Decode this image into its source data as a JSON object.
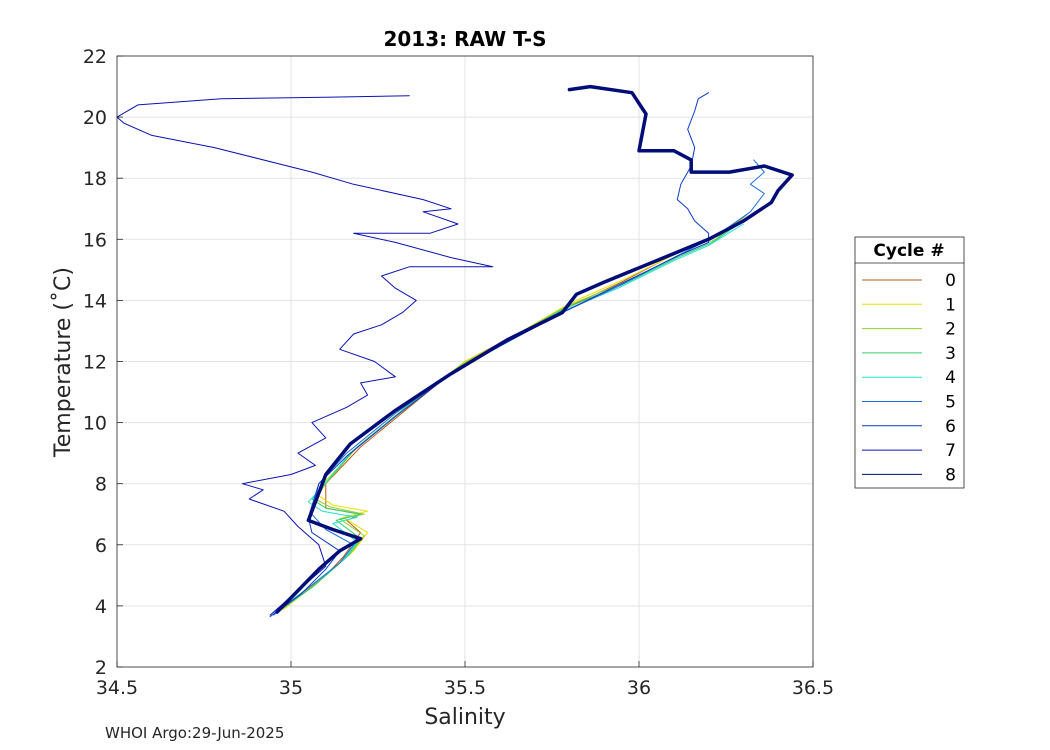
{
  "footer": "WHOI Argo:29-Jun-2025",
  "chart_data": {
    "type": "line",
    "title": "2013: RAW T-S",
    "xlabel": "Salinity",
    "ylabel": "Temperature (˚C)",
    "xlim": [
      34.5,
      36.5
    ],
    "ylim": [
      2,
      22
    ],
    "xticks": [
      "34.5",
      "35",
      "35.5",
      "36",
      "36.5"
    ],
    "yticks": [
      "2",
      "4",
      "6",
      "8",
      "10",
      "12",
      "14",
      "16",
      "18",
      "20",
      "22"
    ],
    "grid": true,
    "legend": {
      "title": "Cycle #",
      "placement": "outside-right"
    },
    "series": [
      {
        "name": "0",
        "color": "#c05a10",
        "width": 1,
        "points": [
          [
            34.99,
            4.0
          ],
          [
            35.1,
            5.0
          ],
          [
            35.15,
            5.6
          ],
          [
            35.2,
            6.4
          ],
          [
            35.16,
            6.8
          ],
          [
            35.2,
            7.0
          ],
          [
            35.1,
            7.2
          ],
          [
            35.1,
            7.6
          ],
          [
            35.1,
            8.0
          ],
          [
            35.2,
            9.2
          ],
          [
            35.35,
            10.6
          ],
          [
            35.5,
            12.0
          ],
          [
            35.6,
            12.6
          ],
          [
            35.8,
            13.8
          ],
          [
            35.95,
            14.6
          ],
          [
            36.1,
            15.5
          ],
          [
            36.2,
            16.0
          ],
          [
            36.3,
            16.6
          ]
        ]
      },
      {
        "name": "1",
        "color": "#e8e000",
        "width": 1,
        "points": [
          [
            34.98,
            3.9
          ],
          [
            35.08,
            4.8
          ],
          [
            35.18,
            5.8
          ],
          [
            35.22,
            6.4
          ],
          [
            35.15,
            6.9
          ],
          [
            35.22,
            7.1
          ],
          [
            35.12,
            7.3
          ],
          [
            35.08,
            7.6
          ],
          [
            35.1,
            8.1
          ],
          [
            35.2,
            9.3
          ],
          [
            35.34,
            10.6
          ],
          [
            35.5,
            12.0
          ],
          [
            35.62,
            12.7
          ],
          [
            35.8,
            13.9
          ],
          [
            35.96,
            14.7
          ],
          [
            36.12,
            15.6
          ],
          [
            36.22,
            16.1
          ],
          [
            36.3,
            16.7
          ]
        ]
      },
      {
        "name": "2",
        "color": "#90d030",
        "width": 1,
        "points": [
          [
            34.97,
            3.85
          ],
          [
            35.07,
            4.7
          ],
          [
            35.17,
            5.7
          ],
          [
            35.21,
            6.3
          ],
          [
            35.14,
            6.85
          ],
          [
            35.21,
            7.0
          ],
          [
            35.11,
            7.25
          ],
          [
            35.07,
            7.5
          ],
          [
            35.1,
            8.0
          ],
          [
            35.19,
            9.2
          ],
          [
            35.33,
            10.5
          ],
          [
            35.49,
            11.9
          ],
          [
            35.62,
            12.7
          ],
          [
            35.79,
            13.8
          ],
          [
            35.96,
            14.6
          ],
          [
            36.12,
            15.5
          ],
          [
            36.22,
            16.0
          ],
          [
            36.31,
            16.8
          ]
        ]
      },
      {
        "name": "3",
        "color": "#30d070",
        "width": 1,
        "points": [
          [
            34.96,
            3.8
          ],
          [
            35.06,
            4.6
          ],
          [
            35.16,
            5.6
          ],
          [
            35.2,
            6.2
          ],
          [
            35.13,
            6.8
          ],
          [
            35.2,
            7.0
          ],
          [
            35.1,
            7.2
          ],
          [
            35.06,
            7.5
          ],
          [
            35.09,
            7.9
          ],
          [
            35.18,
            9.1
          ],
          [
            35.32,
            10.4
          ],
          [
            35.48,
            11.8
          ],
          [
            35.61,
            12.6
          ],
          [
            35.78,
            13.7
          ],
          [
            35.95,
            14.5
          ],
          [
            36.11,
            15.4
          ],
          [
            36.21,
            15.9
          ],
          [
            36.3,
            16.6
          ]
        ]
      },
      {
        "name": "4",
        "color": "#20e0d0",
        "width": 1,
        "points": [
          [
            34.95,
            3.75
          ],
          [
            35.05,
            4.6
          ],
          [
            35.15,
            5.5
          ],
          [
            35.19,
            6.1
          ],
          [
            35.12,
            6.7
          ],
          [
            35.19,
            6.9
          ],
          [
            35.09,
            7.1
          ],
          [
            35.05,
            7.4
          ],
          [
            35.09,
            7.9
          ],
          [
            35.17,
            9.0
          ],
          [
            35.31,
            10.3
          ],
          [
            35.47,
            11.7
          ],
          [
            35.6,
            12.5
          ],
          [
            35.77,
            13.6
          ],
          [
            35.94,
            14.4
          ],
          [
            36.1,
            15.3
          ],
          [
            36.2,
            15.8
          ],
          [
            36.3,
            16.5
          ]
        ]
      },
      {
        "name": "5",
        "color": "#1e6ee0",
        "width": 1,
        "points": [
          [
            34.95,
            3.7
          ],
          [
            35.04,
            4.5
          ],
          [
            35.14,
            5.4
          ],
          [
            35.18,
            6.0
          ],
          [
            35.1,
            6.5
          ],
          [
            35.06,
            7.0
          ],
          [
            35.08,
            8.0
          ],
          [
            35.16,
            9.0
          ],
          [
            35.3,
            10.3
          ],
          [
            35.46,
            11.6
          ],
          [
            35.6,
            12.5
          ],
          [
            35.78,
            13.6
          ],
          [
            35.93,
            14.4
          ],
          [
            36.1,
            15.4
          ],
          [
            36.22,
            16.1
          ],
          [
            36.32,
            16.9
          ],
          [
            36.36,
            17.5
          ],
          [
            36.32,
            17.8
          ],
          [
            36.36,
            18.2
          ],
          [
            36.33,
            18.6
          ]
        ]
      },
      {
        "name": "6",
        "color": "#0a3cc8",
        "width": 1,
        "points": [
          [
            34.94,
            3.65
          ],
          [
            35.03,
            4.4
          ],
          [
            35.1,
            5.2
          ],
          [
            35.14,
            5.8
          ],
          [
            35.06,
            6.4
          ],
          [
            35.05,
            6.9
          ],
          [
            35.08,
            8.0
          ],
          [
            35.16,
            8.9
          ],
          [
            35.3,
            10.2
          ],
          [
            35.46,
            11.6
          ],
          [
            35.6,
            12.5
          ],
          [
            35.78,
            13.6
          ],
          [
            35.94,
            14.5
          ],
          [
            36.12,
            15.5
          ],
          [
            36.2,
            15.9
          ],
          [
            36.2,
            16.2
          ],
          [
            36.16,
            16.6
          ],
          [
            36.14,
            17.0
          ],
          [
            36.11,
            17.3
          ],
          [
            36.12,
            17.8
          ],
          [
            36.15,
            18.4
          ],
          [
            36.16,
            19.0
          ],
          [
            36.14,
            19.6
          ],
          [
            36.16,
            20.2
          ],
          [
            36.17,
            20.6
          ],
          [
            36.2,
            20.8
          ]
        ]
      },
      {
        "name": "7",
        "color": "#0a14b4",
        "width": 1,
        "points": [
          [
            34.94,
            3.7
          ],
          [
            35.02,
            4.5
          ],
          [
            35.1,
            5.3
          ],
          [
            35.08,
            6.0
          ],
          [
            35.02,
            6.6
          ],
          [
            34.98,
            7.1
          ],
          [
            34.88,
            7.5
          ],
          [
            34.92,
            7.8
          ],
          [
            34.86,
            8.0
          ],
          [
            35.0,
            8.3
          ],
          [
            35.07,
            8.6
          ],
          [
            35.02,
            9.0
          ],
          [
            35.1,
            9.5
          ],
          [
            35.06,
            10.0
          ],
          [
            35.16,
            10.5
          ],
          [
            35.22,
            10.9
          ],
          [
            35.2,
            11.3
          ],
          [
            35.3,
            11.5
          ],
          [
            35.24,
            12.0
          ],
          [
            35.14,
            12.4
          ],
          [
            35.18,
            12.9
          ],
          [
            35.26,
            13.2
          ],
          [
            35.32,
            13.6
          ],
          [
            35.36,
            14.0
          ],
          [
            35.3,
            14.4
          ],
          [
            35.26,
            14.8
          ],
          [
            35.34,
            15.1
          ],
          [
            35.58,
            15.1
          ],
          [
            35.46,
            15.4
          ],
          [
            35.3,
            15.9
          ],
          [
            35.18,
            16.2
          ],
          [
            35.4,
            16.2
          ],
          [
            35.48,
            16.5
          ],
          [
            35.38,
            16.9
          ],
          [
            35.46,
            17.0
          ],
          [
            35.38,
            17.3
          ],
          [
            35.18,
            17.8
          ],
          [
            35.06,
            18.2
          ],
          [
            34.78,
            19.0
          ],
          [
            34.6,
            19.4
          ],
          [
            34.52,
            19.8
          ],
          [
            34.5,
            20.0
          ],
          [
            34.56,
            20.4
          ],
          [
            34.8,
            20.6
          ],
          [
            35.1,
            20.65
          ],
          [
            35.34,
            20.7
          ]
        ]
      },
      {
        "name": "8",
        "color": "#000c78",
        "width": 3.5,
        "points": [
          [
            34.96,
            3.8
          ],
          [
            35.02,
            4.5
          ],
          [
            35.08,
            5.2
          ],
          [
            35.14,
            5.8
          ],
          [
            35.2,
            6.2
          ],
          [
            35.12,
            6.5
          ],
          [
            35.05,
            6.8
          ],
          [
            35.07,
            7.4
          ],
          [
            35.1,
            8.3
          ],
          [
            35.17,
            9.3
          ],
          [
            35.3,
            10.4
          ],
          [
            35.46,
            11.6
          ],
          [
            35.62,
            12.7
          ],
          [
            35.78,
            13.6
          ],
          [
            35.82,
            14.2
          ],
          [
            35.9,
            14.6
          ],
          [
            36.05,
            15.3
          ],
          [
            36.2,
            16.0
          ],
          [
            36.3,
            16.6
          ],
          [
            36.38,
            17.2
          ],
          [
            36.4,
            17.6
          ],
          [
            36.44,
            18.1
          ],
          [
            36.36,
            18.4
          ],
          [
            36.26,
            18.2
          ],
          [
            36.15,
            18.2
          ],
          [
            36.15,
            18.6
          ],
          [
            36.1,
            18.9
          ],
          [
            36.0,
            18.9
          ],
          [
            36.02,
            20.1
          ],
          [
            35.98,
            20.8
          ],
          [
            35.86,
            21.0
          ],
          [
            35.8,
            20.9
          ]
        ]
      }
    ]
  }
}
